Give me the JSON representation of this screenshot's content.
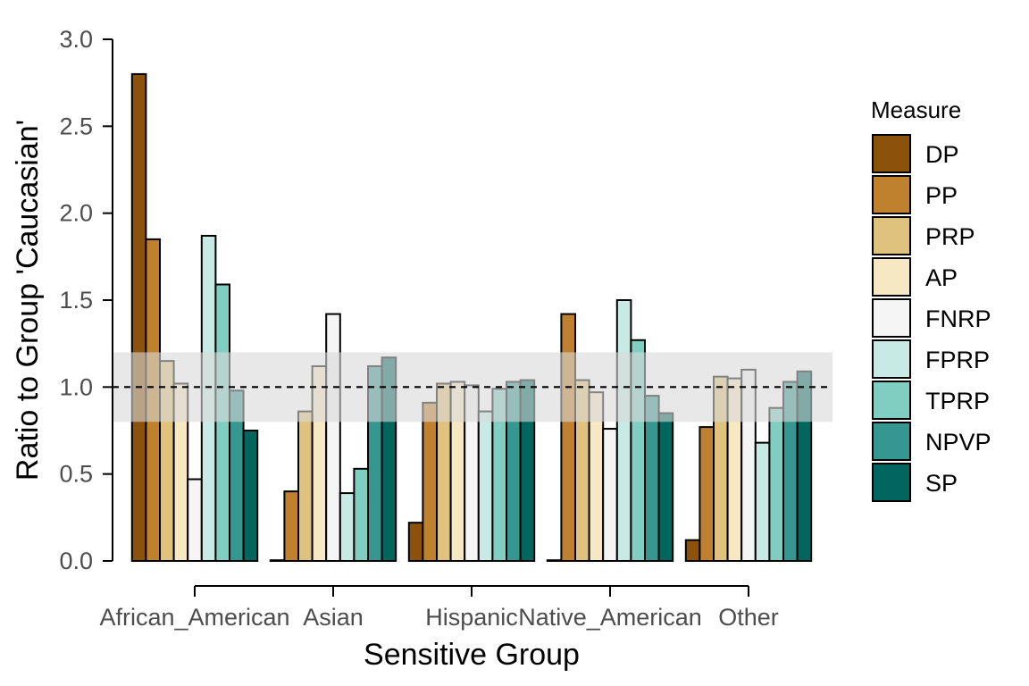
{
  "chart_data": {
    "type": "bar",
    "xlabel": "Sensitive Group",
    "ylabel": "Ratio to Group 'Caucasian'",
    "ylim": [
      0,
      3.0
    ],
    "yticks": [
      "0.0",
      "0.5",
      "1.0",
      "1.5",
      "2.0",
      "2.5",
      "3.0"
    ],
    "categories": [
      "African_American",
      "Asian",
      "Hispanic",
      "Native_American",
      "Other"
    ],
    "legend_title": "Measure",
    "legend_position": "right",
    "reference_line": 1.0,
    "reference_band": [
      0.8,
      1.2
    ],
    "series": [
      {
        "name": "DP",
        "color": "#8c510a",
        "values": [
          2.8,
          0.0,
          0.22,
          0.0,
          0.12
        ]
      },
      {
        "name": "PP",
        "color": "#bf812d",
        "values": [
          1.85,
          0.4,
          0.91,
          1.42,
          0.77
        ]
      },
      {
        "name": "PRP",
        "color": "#dfc27d",
        "values": [
          1.15,
          0.86,
          1.02,
          1.04,
          1.06
        ]
      },
      {
        "name": "AP",
        "color": "#f6e8c3",
        "values": [
          1.02,
          1.12,
          1.03,
          0.97,
          1.05
        ]
      },
      {
        "name": "FNRP",
        "color": "#f5f5f5",
        "values": [
          0.47,
          1.42,
          1.01,
          0.76,
          1.1
        ]
      },
      {
        "name": "FPRP",
        "color": "#c7eae5",
        "values": [
          1.87,
          0.39,
          0.86,
          1.5,
          0.68
        ]
      },
      {
        "name": "TPRP",
        "color": "#80cdc1",
        "values": [
          1.59,
          0.53,
          0.99,
          1.27,
          0.88
        ]
      },
      {
        "name": "NPVP",
        "color": "#35978f",
        "values": [
          0.98,
          1.12,
          1.03,
          0.95,
          1.03
        ]
      },
      {
        "name": "SP",
        "color": "#01665e",
        "values": [
          0.75,
          1.17,
          1.04,
          0.85,
          1.09
        ]
      }
    ]
  }
}
